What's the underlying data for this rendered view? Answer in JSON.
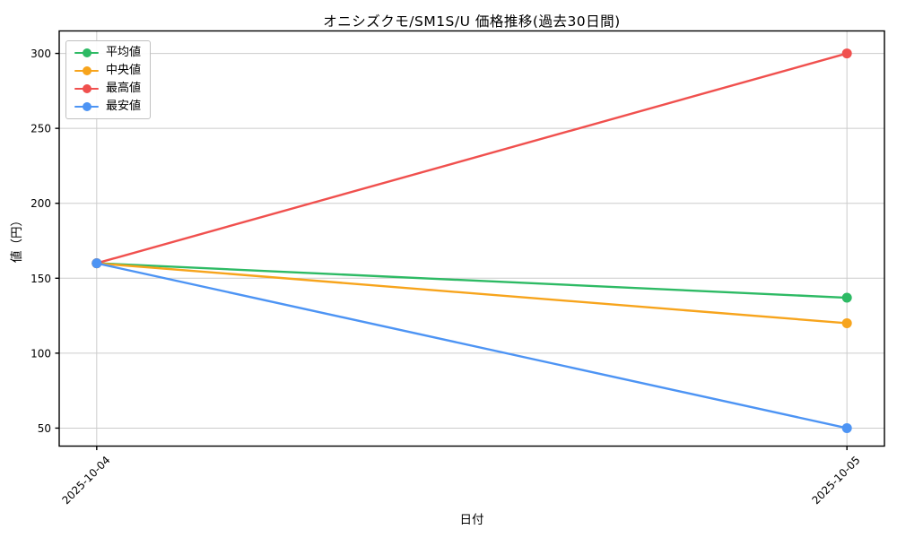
{
  "chart_data": {
    "type": "line",
    "title": "オニシズクモ/SM1S/U 価格推移(過去30日間)",
    "xlabel": "日付",
    "ylabel": "値（円）",
    "categories": [
      "2025-10-04",
      "2025-10-05"
    ],
    "series": [
      {
        "id": "average",
        "name": "平均値",
        "color": "#2dba64",
        "values": [
          160,
          137
        ]
      },
      {
        "id": "median",
        "name": "中央値",
        "color": "#f7a41c",
        "values": [
          160,
          120
        ]
      },
      {
        "id": "max",
        "name": "最高値",
        "color": "#f0504e",
        "values": [
          160,
          300
        ]
      },
      {
        "id": "min",
        "name": "最安値",
        "color": "#4d94f4",
        "values": [
          160,
          50
        ]
      }
    ],
    "yticks": [
      50,
      100,
      150,
      200,
      250,
      300
    ],
    "ylim": [
      38,
      315
    ],
    "xlim": [
      -0.05,
      1.05
    ],
    "grid": true,
    "grid_color": "#cccccc",
    "axis_color": "#000000",
    "background": "#ffffff",
    "legend_position": "upper-left",
    "marker": "circle"
  }
}
